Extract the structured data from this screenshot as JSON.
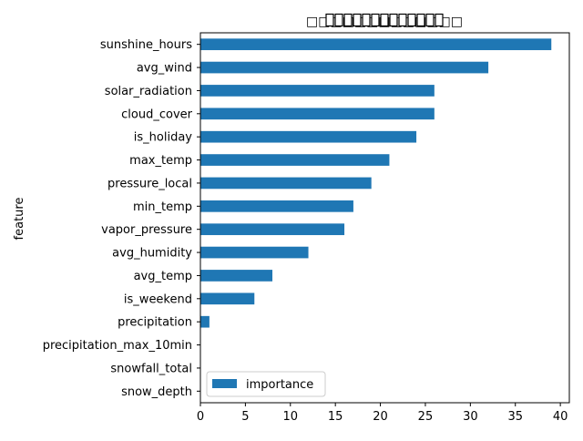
{
  "chart_data": {
    "type": "bar",
    "orientation": "horizontal",
    "title": "□□□□□□□□□□□□□",
    "xlabel": "",
    "ylabel": "feature",
    "xlim": [
      0,
      41
    ],
    "xticks": [
      0,
      5,
      10,
      15,
      20,
      25,
      30,
      35,
      40
    ],
    "categories": [
      "sunshine_hours",
      "avg_wind",
      "solar_radiation",
      "cloud_cover",
      "is_holiday",
      "max_temp",
      "pressure_local",
      "min_temp",
      "vapor_pressure",
      "avg_humidity",
      "avg_temp",
      "is_weekend",
      "precipitation",
      "precipitation_max_10min",
      "snowfall_total",
      "snow_depth"
    ],
    "series": [
      {
        "name": "importance",
        "values": [
          39,
          32,
          26,
          26,
          24,
          21,
          19,
          17,
          16,
          12,
          8,
          6,
          1,
          0,
          0,
          0
        ]
      }
    ],
    "legend": {
      "position": "lower-left"
    },
    "grid": false,
    "colors": {
      "bar": "#1f77b4",
      "axis": "#000000",
      "background": "#ffffff"
    }
  }
}
